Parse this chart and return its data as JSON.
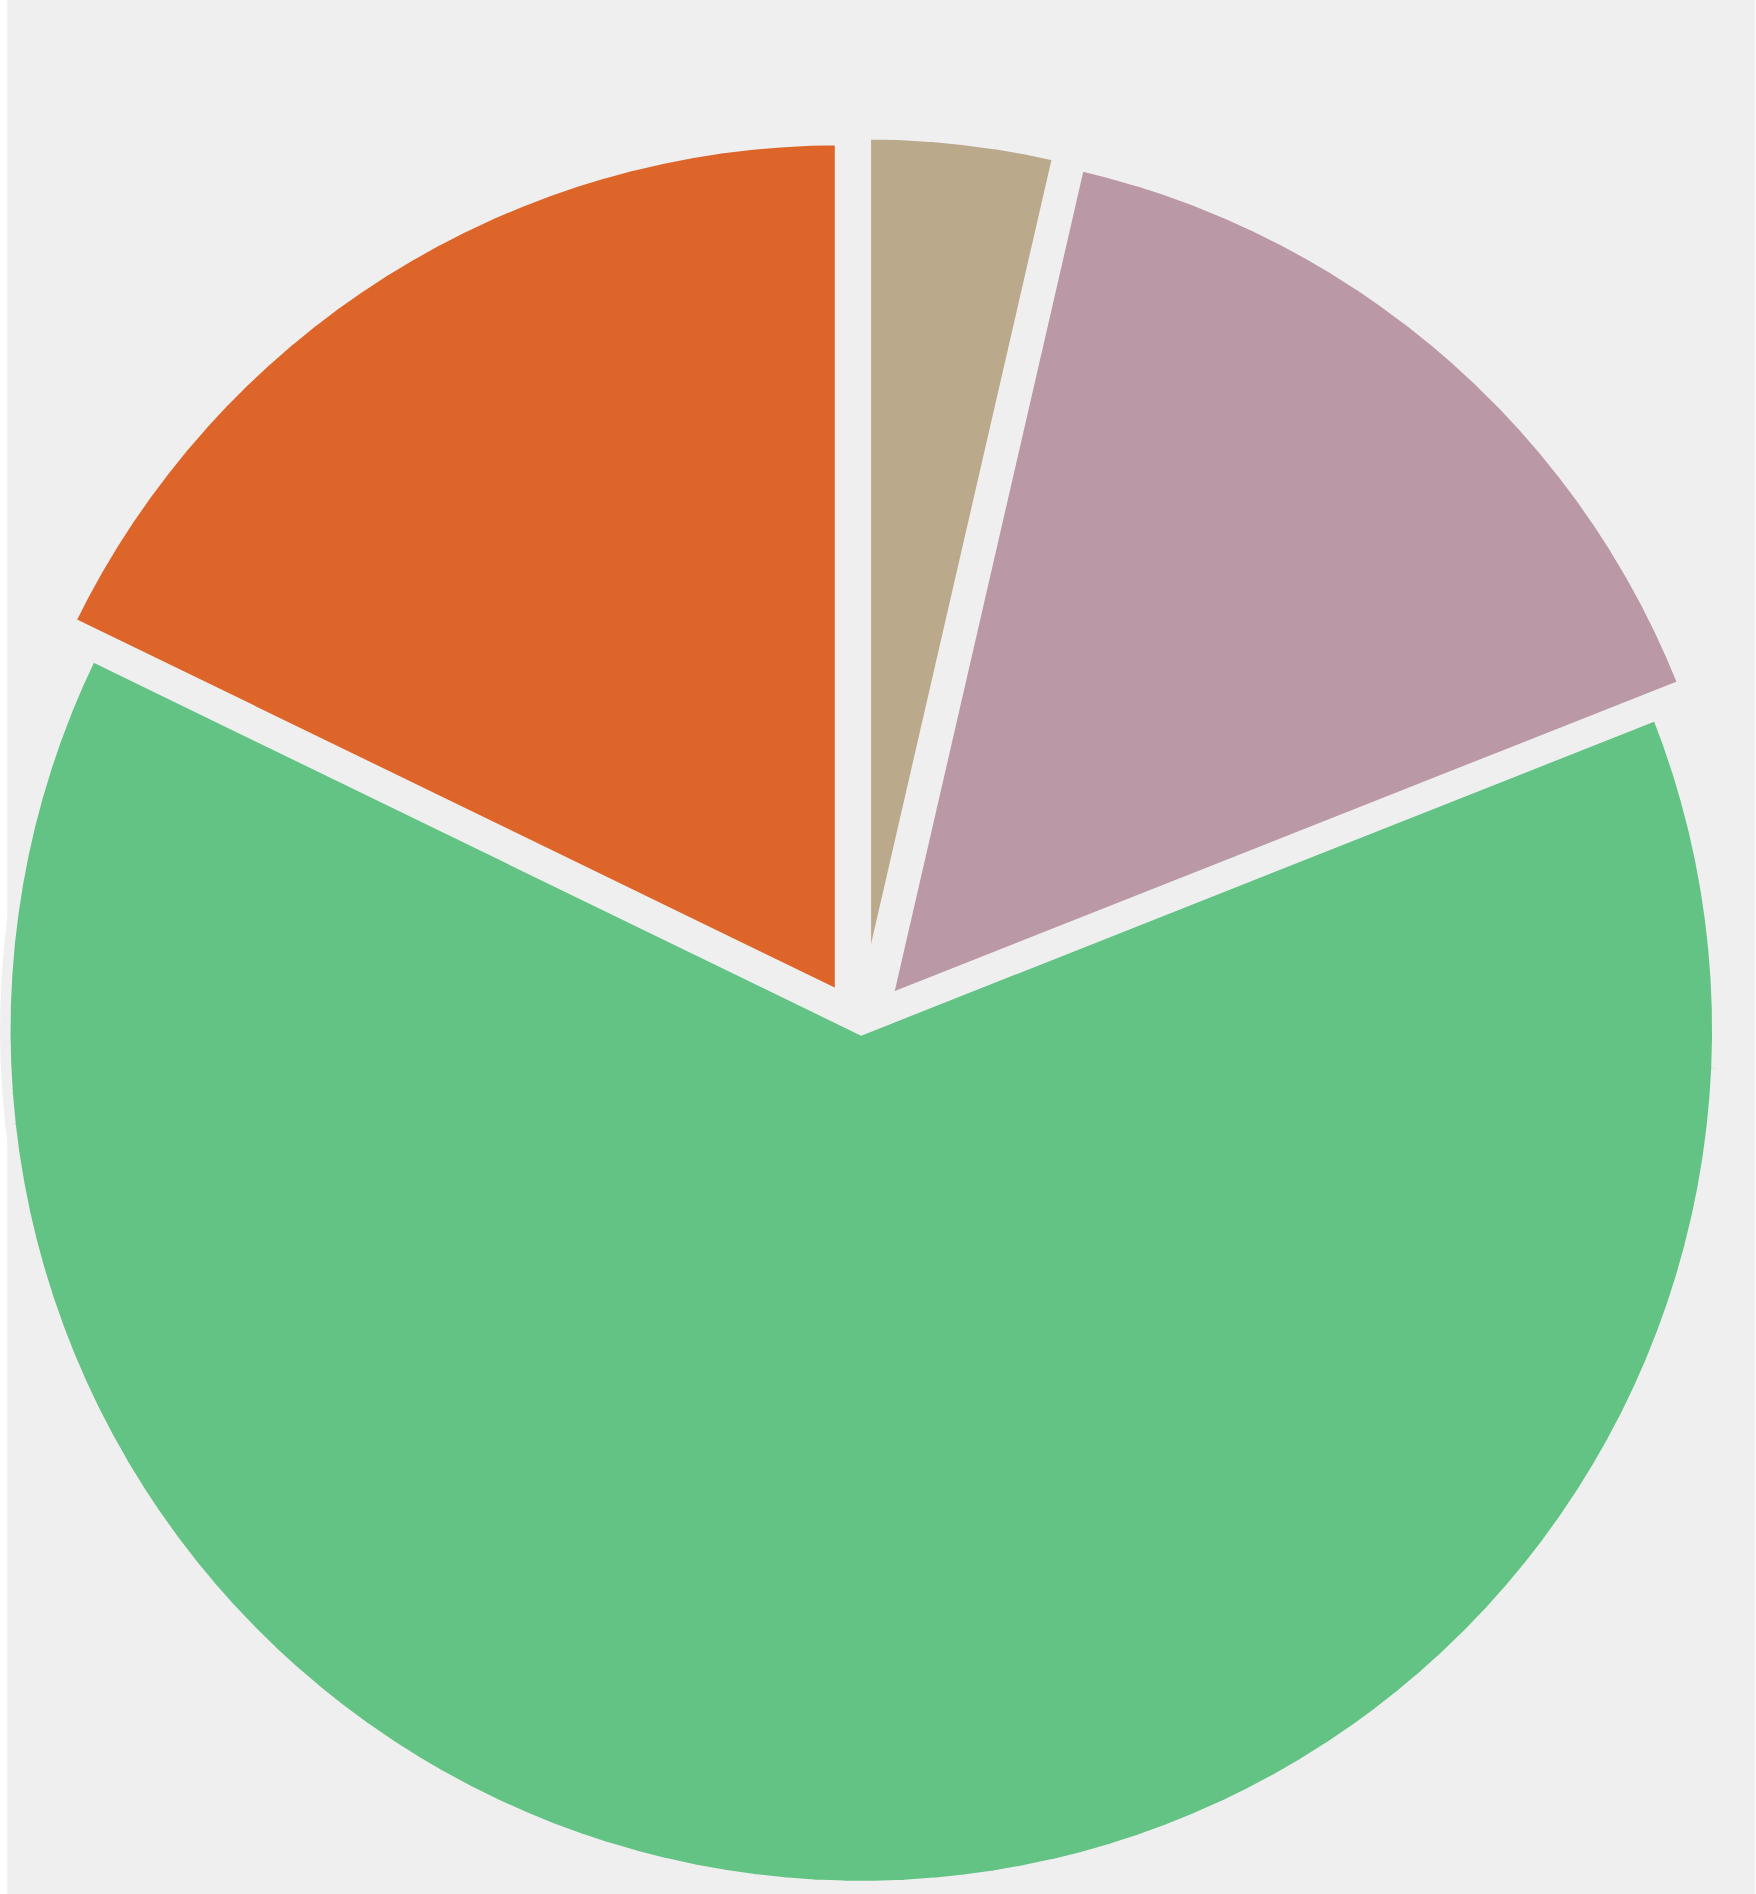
{
  "chart_data": {
    "type": "pie",
    "categories": [
      null,
      null,
      null,
      null
    ],
    "values": [
      3.6,
      15.4,
      63.2,
      17.8
    ],
    "colors": [
      "#bba98c",
      "#bb98a6",
      "#63c385",
      "#de6529"
    ]
  }
}
